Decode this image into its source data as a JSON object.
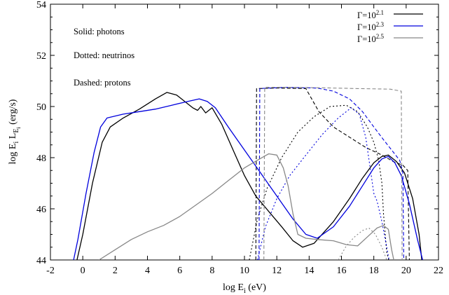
{
  "chart_data": {
    "type": "line",
    "xlabel": {
      "main": "log  E",
      "sub": "i",
      "tail": " (eV)"
    },
    "ylabel": {
      "main": "log E",
      "sub1": "i",
      "mid": " L",
      "sub2": "E",
      "sub3": "i",
      "tail": " (erg/s)"
    },
    "xlim": [
      -2,
      22
    ],
    "ylim": [
      44,
      54
    ],
    "xticks": [
      "-2",
      "0",
      "2",
      "4",
      "6",
      "8",
      "10",
      "12",
      "14",
      "16",
      "18",
      "20",
      "22"
    ],
    "yticks": [
      "44",
      "46",
      "48",
      "50",
      "52",
      "54"
    ],
    "annotations": [
      "Solid: photons",
      "Dotted: neutrinos",
      "Dashed: protons"
    ],
    "legend_position": "top-right",
    "series": [
      {
        "name": "Γ=10^2.1",
        "legend_base": "Γ=10",
        "legend_exp": "2.1",
        "color": "#000000",
        "curves": [
          {
            "style": "solid",
            "points": [
              [
                -0.5,
                43.6
              ],
              [
                0,
                45.0
              ],
              [
                0.6,
                47.0
              ],
              [
                1.2,
                48.6
              ],
              [
                1.7,
                49.2
              ],
              [
                2.5,
                49.55
              ],
              [
                3.5,
                49.9
              ],
              [
                4.5,
                50.3
              ],
              [
                5.2,
                50.55
              ],
              [
                5.8,
                50.45
              ],
              [
                6.4,
                50.15
              ],
              [
                6.8,
                49.95
              ],
              [
                7.1,
                49.85
              ],
              [
                7.3,
                50.0
              ],
              [
                7.6,
                49.75
              ],
              [
                8.0,
                49.95
              ],
              [
                8.6,
                49.3
              ],
              [
                9.3,
                48.3
              ],
              [
                10.0,
                47.3
              ],
              [
                10.7,
                46.5
              ],
              [
                11.5,
                45.9
              ],
              [
                12.3,
                45.3
              ],
              [
                13.0,
                44.75
              ],
              [
                13.6,
                44.5
              ],
              [
                14.3,
                44.65
              ],
              [
                15.5,
                45.5
              ],
              [
                16.5,
                46.4
              ],
              [
                17.3,
                47.2
              ],
              [
                18.0,
                47.8
              ],
              [
                18.5,
                48.05
              ],
              [
                18.9,
                48.1
              ],
              [
                19.4,
                47.85
              ],
              [
                19.9,
                47.4
              ],
              [
                20.4,
                46.4
              ],
              [
                20.8,
                45.0
              ],
              [
                21.0,
                43.8
              ]
            ]
          },
          {
            "style": "dotted",
            "points": [
              [
                10.3,
                44.0
              ],
              [
                10.8,
                45.6
              ],
              [
                11.4,
                46.8
              ],
              [
                12.3,
                48.0
              ],
              [
                13.3,
                49.0
              ],
              [
                14.3,
                49.6
              ],
              [
                15.3,
                50.0
              ],
              [
                16.3,
                50.05
              ],
              [
                17.0,
                49.8
              ],
              [
                17.6,
                49.2
              ],
              [
                18.0,
                48.6
              ],
              [
                18.3,
                47.9
              ],
              [
                18.5,
                47.0
              ],
              [
                18.6,
                45.8
              ],
              [
                18.8,
                44.3
              ],
              [
                19.0,
                43.8
              ]
            ]
          },
          {
            "style": "dashed",
            "points": [
              [
                10.7,
                44.0
              ],
              [
                10.75,
                50.7
              ],
              [
                12.0,
                50.72
              ],
              [
                13.8,
                50.7
              ],
              [
                14.6,
                49.8
              ],
              [
                15.5,
                49.2
              ],
              [
                16.5,
                48.8
              ],
              [
                17.5,
                48.4
              ],
              [
                18.5,
                48.1
              ],
              [
                19.2,
                47.85
              ],
              [
                19.8,
                47.7
              ],
              [
                20.1,
                47.5
              ],
              [
                20.2,
                44.0
              ]
            ]
          }
        ]
      },
      {
        "name": "Γ=10^2.3",
        "legend_base": "Γ=10",
        "legend_exp": "2.3",
        "color": "#0000dd",
        "curves": [
          {
            "style": "solid",
            "points": [
              [
                -0.7,
                43.6
              ],
              [
                -0.3,
                44.8
              ],
              [
                0.2,
                46.6
              ],
              [
                0.7,
                48.2
              ],
              [
                1.1,
                49.2
              ],
              [
                1.5,
                49.55
              ],
              [
                2.5,
                49.7
              ],
              [
                3.5,
                49.8
              ],
              [
                4.5,
                49.9
              ],
              [
                5.5,
                50.05
              ],
              [
                6.5,
                50.2
              ],
              [
                7.2,
                50.3
              ],
              [
                7.7,
                50.2
              ],
              [
                8.2,
                49.95
              ],
              [
                9.0,
                49.2
              ],
              [
                10.0,
                48.3
              ],
              [
                11.0,
                47.4
              ],
              [
                12.0,
                46.5
              ],
              [
                13.0,
                45.6
              ],
              [
                13.8,
                45.0
              ],
              [
                14.5,
                44.85
              ],
              [
                15.5,
                45.3
              ],
              [
                16.5,
                46.1
              ],
              [
                17.3,
                46.9
              ],
              [
                18.0,
                47.6
              ],
              [
                18.5,
                47.95
              ],
              [
                18.9,
                48.05
              ],
              [
                19.3,
                47.8
              ],
              [
                19.7,
                47.3
              ],
              [
                20.2,
                46.2
              ],
              [
                20.7,
                44.8
              ],
              [
                21.1,
                43.8
              ]
            ]
          },
          {
            "style": "dotted",
            "points": [
              [
                10.8,
                44.0
              ],
              [
                11.3,
                45.3
              ],
              [
                12.0,
                46.4
              ],
              [
                12.8,
                47.3
              ],
              [
                13.8,
                48.1
              ],
              [
                14.8,
                48.9
              ],
              [
                15.8,
                49.55
              ],
              [
                16.6,
                49.95
              ],
              [
                17.1,
                49.7
              ],
              [
                17.5,
                48.8
              ],
              [
                17.8,
                47.5
              ],
              [
                18.0,
                46.6
              ],
              [
                18.2,
                46.3
              ],
              [
                18.5,
                45.5
              ],
              [
                18.8,
                44.5
              ],
              [
                19.0,
                43.8
              ]
            ]
          },
          {
            "style": "dashed",
            "points": [
              [
                10.9,
                44.0
              ],
              [
                10.95,
                50.7
              ],
              [
                12.5,
                50.75
              ],
              [
                14.5,
                50.72
              ],
              [
                15.5,
                50.6
              ],
              [
                16.5,
                50.3
              ],
              [
                17.3,
                49.8
              ],
              [
                18.0,
                49.2
              ],
              [
                18.6,
                48.7
              ],
              [
                19.1,
                48.3
              ],
              [
                19.6,
                47.9
              ],
              [
                19.8,
                47.4
              ],
              [
                19.85,
                44.0
              ]
            ]
          }
        ]
      },
      {
        "name": "Γ=10^2.5",
        "legend_base": "Γ=10",
        "legend_exp": "2.5",
        "color": "#888888",
        "curves": [
          {
            "style": "solid",
            "points": [
              [
                1.0,
                44.0
              ],
              [
                2.0,
                44.4
              ],
              [
                3.0,
                44.8
              ],
              [
                4.0,
                45.1
              ],
              [
                5.0,
                45.35
              ],
              [
                6.0,
                45.7
              ],
              [
                7.0,
                46.15
              ],
              [
                8.0,
                46.6
              ],
              [
                9.0,
                47.1
              ],
              [
                10.0,
                47.6
              ],
              [
                10.8,
                47.9
              ],
              [
                11.5,
                48.15
              ],
              [
                12.0,
                48.1
              ],
              [
                12.4,
                47.6
              ],
              [
                12.7,
                46.9
              ],
              [
                13.0,
                45.8
              ],
              [
                13.3,
                45.0
              ],
              [
                13.8,
                44.85
              ],
              [
                14.5,
                44.8
              ],
              [
                15.5,
                44.75
              ],
              [
                16.3,
                44.6
              ],
              [
                17.0,
                44.55
              ],
              [
                17.6,
                44.9
              ],
              [
                18.2,
                45.25
              ],
              [
                18.6,
                45.35
              ],
              [
                18.9,
                45.2
              ],
              [
                19.1,
                44.4
              ],
              [
                19.3,
                43.8
              ]
            ]
          },
          {
            "style": "dotted",
            "points": [
              [
                15.8,
                44.0
              ],
              [
                16.3,
                44.55
              ],
              [
                16.8,
                44.9
              ],
              [
                17.3,
                45.15
              ],
              [
                17.7,
                45.25
              ],
              [
                18.1,
                45.0
              ],
              [
                18.5,
                44.5
              ],
              [
                18.8,
                44.0
              ]
            ]
          },
          {
            "style": "dashed",
            "points": [
              [
                11.2,
                44.0
              ],
              [
                11.25,
                50.75
              ],
              [
                13.0,
                50.75
              ],
              [
                15.0,
                50.73
              ],
              [
                17.0,
                50.7
              ],
              [
                19.0,
                50.68
              ],
              [
                19.7,
                50.6
              ],
              [
                19.75,
                44.0
              ]
            ]
          }
        ]
      }
    ]
  }
}
